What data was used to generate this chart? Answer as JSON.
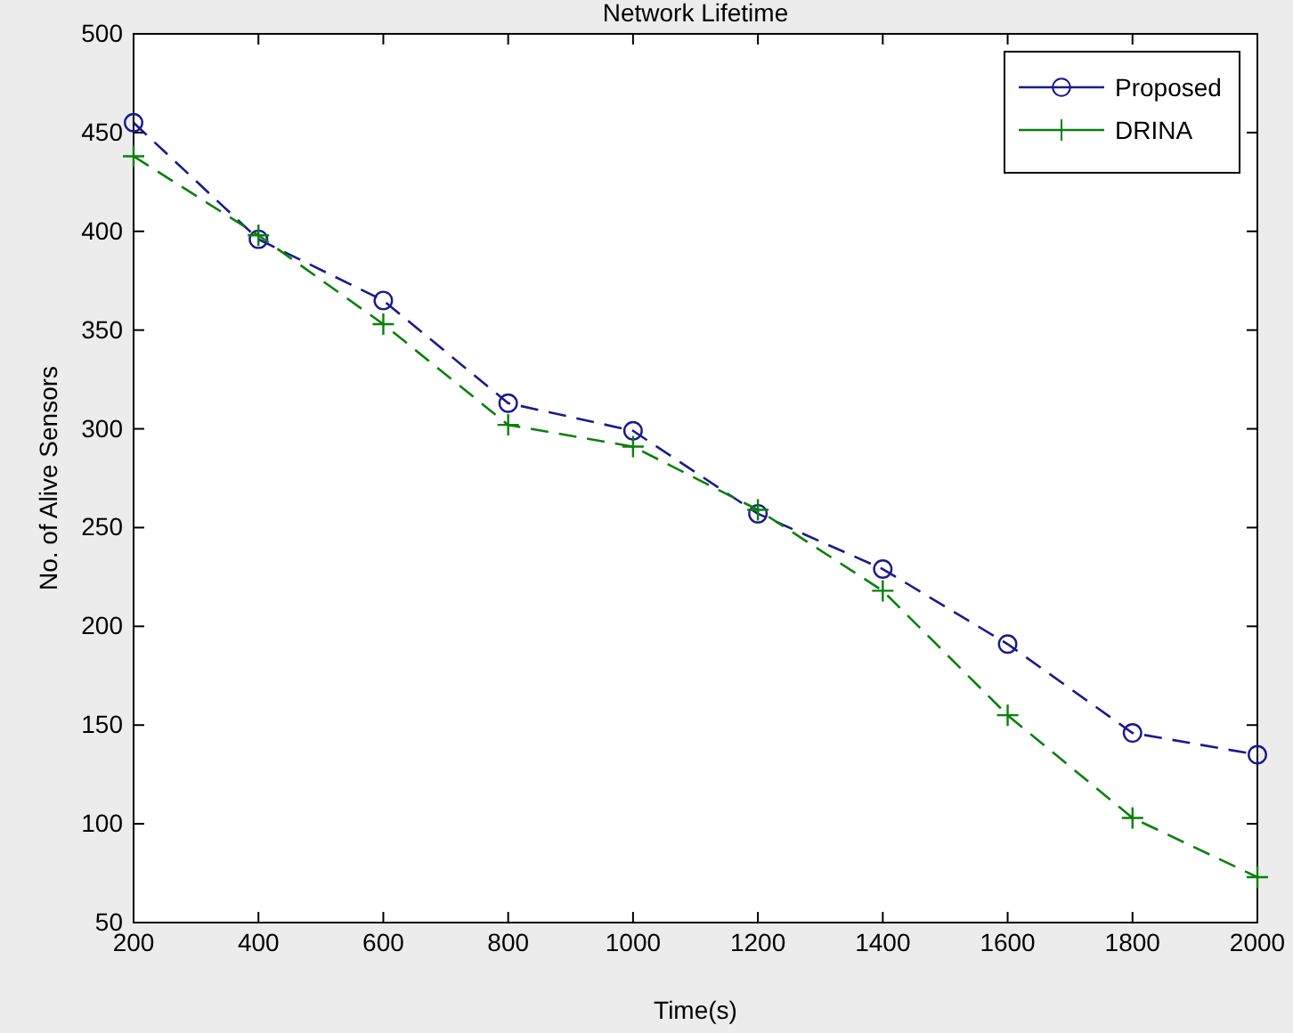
{
  "chart_data": {
    "type": "line",
    "title": "Network Lifetime",
    "xlabel": "Time(s)",
    "ylabel": "No. of Alive Sensors",
    "x": [
      200,
      400,
      600,
      800,
      1000,
      1200,
      1400,
      1600,
      1800,
      2000
    ],
    "series": [
      {
        "name": "Proposed",
        "color": "#1a1a8c",
        "marker": "circle",
        "values": [
          455,
          396,
          365,
          313,
          299,
          257,
          229,
          191,
          146,
          135
        ]
      },
      {
        "name": "DRINA",
        "color": "#0a800a",
        "marker": "cross",
        "values": [
          438,
          398,
          353,
          302,
          291,
          259,
          218,
          155,
          103,
          73
        ]
      }
    ],
    "xlim": [
      200,
      2000
    ],
    "xticks": [
      200,
      400,
      600,
      800,
      1000,
      1200,
      1400,
      1600,
      1800,
      2000
    ],
    "ylim": [
      50,
      500
    ],
    "yticks": [
      50,
      100,
      150,
      200,
      250,
      300,
      350,
      400,
      450,
      500
    ],
    "line_style": "dashed",
    "legend": "top right",
    "grid": false
  }
}
